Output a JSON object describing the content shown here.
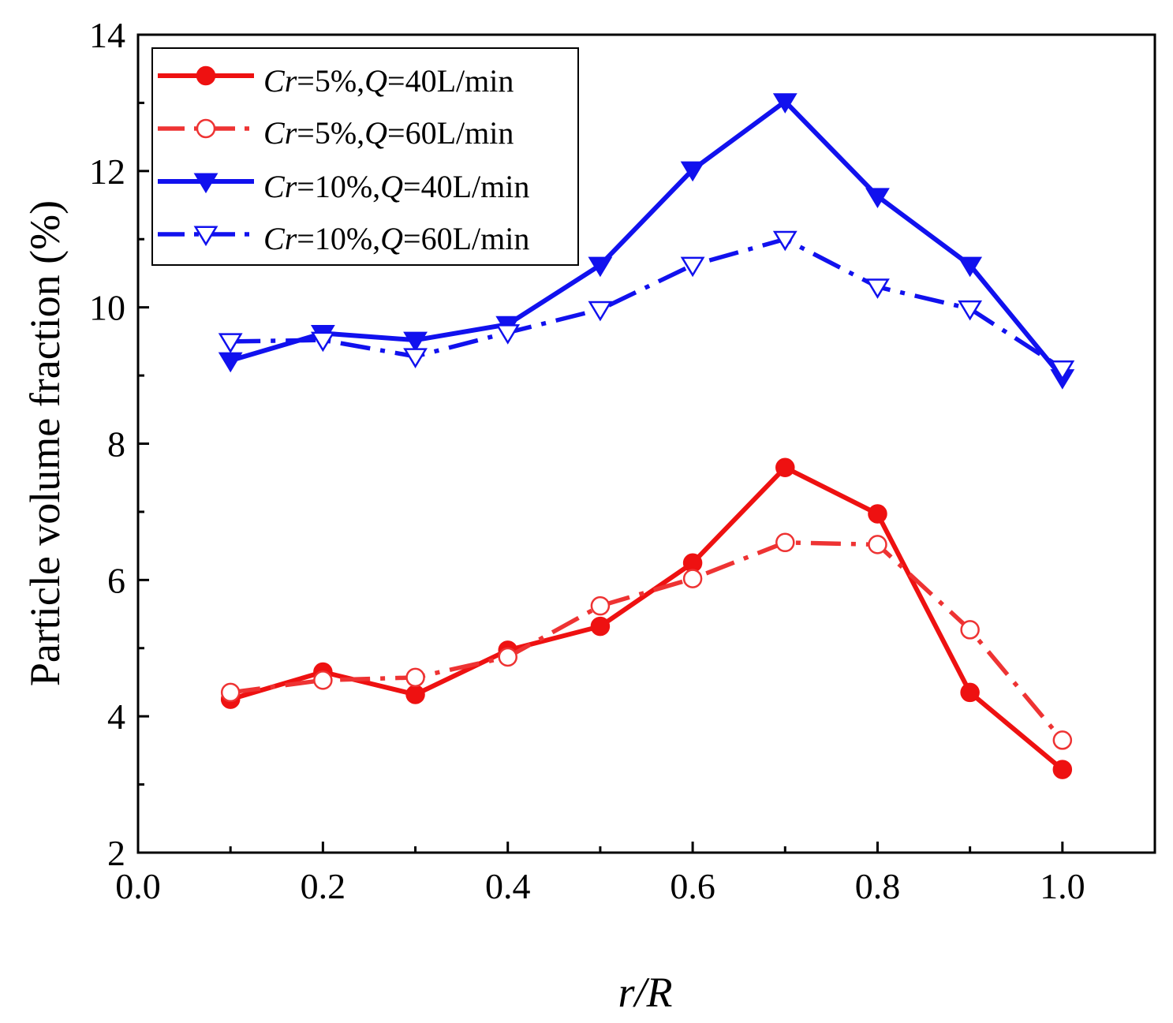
{
  "chart_data": {
    "type": "line",
    "title": "",
    "xlabel": "r/R",
    "ylabel": "Particle volume fraction (%)",
    "xlim": [
      0.0,
      1.1
    ],
    "ylim": [
      2,
      14
    ],
    "x_ticks": [
      0.0,
      0.2,
      0.4,
      0.6,
      0.8,
      1.0
    ],
    "x_tick_labels": [
      "0.0",
      "0.2",
      "0.4",
      "0.6",
      "0.8",
      "1.0"
    ],
    "y_ticks": [
      2,
      4,
      6,
      8,
      10,
      12,
      14
    ],
    "y_tick_labels": [
      "2",
      "4",
      "6",
      "8",
      "10",
      "12",
      "14"
    ],
    "grid": false,
    "legend_position": "top-left",
    "x": [
      0.1,
      0.2,
      0.3,
      0.4,
      0.5,
      0.6,
      0.7,
      0.8,
      0.9,
      1.0
    ],
    "series": [
      {
        "name": "Cr=5%,Q=40L/min",
        "legend": {
          "a": "C",
          "b": "r",
          "c": "=5%,",
          "d": "Q",
          "e": "=40L/min"
        },
        "color": "#ee1111",
        "line_style": "solid",
        "marker": "filled-circle",
        "values": [
          4.25,
          4.65,
          4.32,
          4.97,
          5.32,
          6.25,
          7.65,
          6.97,
          4.35,
          3.22
        ]
      },
      {
        "name": "Cr=5%,Q=60L/min",
        "legend": {
          "a": "C",
          "b": "r",
          "c": "=5%,",
          "d": "Q",
          "e": "=60L/min"
        },
        "color": "#ee3333",
        "line_style": "dash-dot",
        "marker": "open-circle",
        "values": [
          4.35,
          4.53,
          4.57,
          4.87,
          5.62,
          6.02,
          6.55,
          6.52,
          5.27,
          3.65
        ]
      },
      {
        "name": "Cr=10%,Q=40L/min",
        "legend": {
          "a": "C",
          "b": "r",
          "c": "=10%,",
          "d": "Q",
          "e": "=40L/min"
        },
        "color": "#1111ee",
        "line_style": "solid",
        "marker": "filled-down-triangle",
        "values": [
          9.22,
          9.62,
          9.52,
          9.75,
          10.62,
          12.02,
          13.02,
          11.63,
          10.62,
          8.97
        ]
      },
      {
        "name": "Cr=10%,Q=60L/min",
        "legend": {
          "a": "C",
          "b": "r",
          "c": "=10%,",
          "d": "Q",
          "e": "=60L/min"
        },
        "color": "#1111ee",
        "line_style": "dash-dot",
        "marker": "open-down-triangle",
        "values": [
          9.5,
          9.52,
          9.28,
          9.63,
          9.97,
          10.62,
          11.0,
          10.3,
          9.98,
          9.1
        ]
      }
    ]
  }
}
